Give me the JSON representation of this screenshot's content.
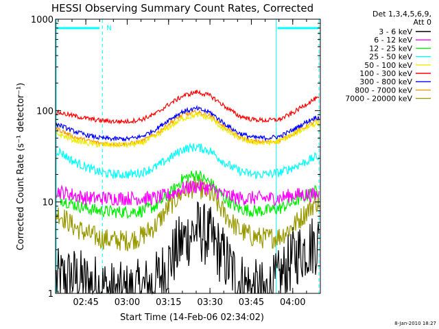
{
  "chart_data": {
    "type": "line",
    "title": "HESSI Observing Summary Count Rates, Corrected",
    "xlabel": "Start Time (14-Feb-06 02:34:02)",
    "ylabel": "Corrected Count Rate (s⁻¹ detector⁻¹)",
    "y_scale": "log",
    "ylim": [
      1,
      1000
    ],
    "xlim": [
      "02:34",
      "04:10"
    ],
    "x_ticks": [
      "02:45",
      "03:00",
      "03:15",
      "03:30",
      "03:45",
      "04:00"
    ],
    "y_ticks": [
      "1",
      "10",
      "100",
      "1000"
    ],
    "grid": false,
    "legend_position": "right",
    "legend_header": [
      "Det 1,3,4,5,6,9,",
      "Att 0"
    ],
    "timestamp": "8-Jan-2010 18:27",
    "annotations": {
      "night_start": "02:51",
      "night_end": "03:54",
      "saa_label": "N"
    },
    "series": [
      {
        "name": "3 - 6 keV",
        "color": "#000000",
        "x": [
          "02:35",
          "02:40",
          "02:45",
          "02:50",
          "02:55",
          "03:00",
          "03:05",
          "03:10",
          "03:15",
          "03:20",
          "03:25",
          "03:30",
          "03:35",
          "03:40",
          "03:45",
          "03:50",
          "03:55",
          "04:00",
          "04:05",
          "04:08"
        ],
        "values": [
          1.4,
          1.5,
          1.3,
          1.2,
          1.0,
          1.0,
          1.1,
          1.3,
          2.2,
          3.8,
          5.0,
          4.0,
          2.4,
          1.4,
          1.1,
          1.0,
          1.4,
          2.5,
          3.2,
          3.5
        ]
      },
      {
        "name": "6 - 12 keV",
        "color": "#ff00ff",
        "x": [
          "02:35",
          "02:40",
          "02:45",
          "02:50",
          "02:55",
          "03:00",
          "03:05",
          "03:10",
          "03:15",
          "03:20",
          "03:25",
          "03:30",
          "03:35",
          "03:40",
          "03:45",
          "03:50",
          "03:55",
          "04:00",
          "04:05",
          "04:08"
        ],
        "values": [
          13,
          12,
          11,
          11,
          11,
          11,
          11,
          11,
          12,
          14,
          15,
          14,
          12,
          11,
          11,
          11,
          11,
          12,
          12,
          12
        ]
      },
      {
        "name": "12 - 25 keV",
        "color": "#00ee00",
        "x": [
          "02:35",
          "02:40",
          "02:45",
          "02:50",
          "02:55",
          "03:00",
          "03:05",
          "03:10",
          "03:15",
          "03:20",
          "03:25",
          "03:30",
          "03:35",
          "03:40",
          "03:45",
          "03:50",
          "03:55",
          "04:00",
          "04:05",
          "04:08"
        ],
        "values": [
          11,
          9.5,
          8.5,
          8,
          7.8,
          7.8,
          8,
          9,
          12,
          18,
          20,
          16,
          11,
          8.5,
          8,
          8,
          8.5,
          10,
          12,
          13
        ]
      },
      {
        "name": "25 - 50 keV",
        "color": "#00ffff",
        "x": [
          "02:35",
          "02:40",
          "02:45",
          "02:50",
          "02:55",
          "03:00",
          "03:05",
          "03:10",
          "03:15",
          "03:20",
          "03:25",
          "03:30",
          "03:35",
          "03:40",
          "03:45",
          "03:50",
          "03:55",
          "04:00",
          "04:05",
          "04:08"
        ],
        "values": [
          36,
          28,
          24,
          21,
          20,
          20,
          21,
          24,
          30,
          38,
          40,
          36,
          27,
          22,
          20,
          20,
          21,
          24,
          28,
          31
        ]
      },
      {
        "name": "50 - 100 keV",
        "color": "#eeee00",
        "x": [
          "02:35",
          "02:40",
          "02:45",
          "02:50",
          "02:55",
          "03:00",
          "03:05",
          "03:10",
          "03:15",
          "03:20",
          "03:25",
          "03:30",
          "03:35",
          "03:40",
          "03:45",
          "03:50",
          "03:55",
          "04:00",
          "04:05",
          "04:08"
        ],
        "values": [
          55,
          48,
          44,
          42,
          42,
          42,
          44,
          52,
          66,
          82,
          90,
          82,
          62,
          50,
          45,
          44,
          46,
          55,
          66,
          72
        ]
      },
      {
        "name": "100 - 300 keV",
        "color": "#ff0000",
        "x": [
          "02:35",
          "02:40",
          "02:45",
          "02:50",
          "02:55",
          "03:00",
          "03:05",
          "03:10",
          "03:15",
          "03:20",
          "03:25",
          "03:30",
          "03:35",
          "03:40",
          "03:45",
          "03:50",
          "03:55",
          "04:00",
          "04:05",
          "04:08"
        ],
        "values": [
          95,
          88,
          82,
          78,
          76,
          76,
          80,
          92,
          118,
          145,
          160,
          145,
          112,
          88,
          80,
          78,
          80,
          95,
          120,
          135
        ]
      },
      {
        "name": "300 - 800 keV",
        "color": "#0000ff",
        "x": [
          "02:35",
          "02:40",
          "02:45",
          "02:50",
          "02:55",
          "03:00",
          "03:05",
          "03:10",
          "03:15",
          "03:20",
          "03:25",
          "03:30",
          "03:35",
          "03:40",
          "03:45",
          "03:50",
          "03:55",
          "04:00",
          "04:05",
          "04:08"
        ],
        "values": [
          70,
          60,
          54,
          50,
          49,
          49,
          52,
          62,
          80,
          98,
          105,
          95,
          72,
          57,
          51,
          50,
          52,
          62,
          76,
          84
        ]
      },
      {
        "name": "800 - 7000 keV",
        "color": "#ff9900",
        "x": [
          "02:35",
          "02:40",
          "02:45",
          "02:50",
          "02:55",
          "03:00",
          "03:05",
          "03:10",
          "03:15",
          "03:20",
          "03:25",
          "03:30",
          "03:35",
          "03:40",
          "03:45",
          "03:50",
          "03:55",
          "04:00",
          "04:05",
          "04:08"
        ],
        "values": [
          62,
          52,
          47,
          44,
          43,
          43,
          46,
          55,
          72,
          90,
          96,
          88,
          66,
          52,
          46,
          45,
          47,
          56,
          68,
          76
        ]
      },
      {
        "name": "7000 - 20000 keV",
        "color": "#999900",
        "x": [
          "02:35",
          "02:40",
          "02:45",
          "02:50",
          "02:55",
          "03:00",
          "03:05",
          "03:10",
          "03:15",
          "03:20",
          "03:25",
          "03:30",
          "03:35",
          "03:40",
          "03:45",
          "03:50",
          "03:55",
          "04:00",
          "04:05",
          "04:08"
        ],
        "values": [
          7.5,
          5.5,
          4.5,
          4.0,
          3.8,
          3.8,
          4.2,
          5.5,
          9,
          13,
          15,
          12,
          7.5,
          5,
          4.2,
          4.0,
          4.2,
          5.5,
          8,
          10
        ]
      }
    ]
  }
}
